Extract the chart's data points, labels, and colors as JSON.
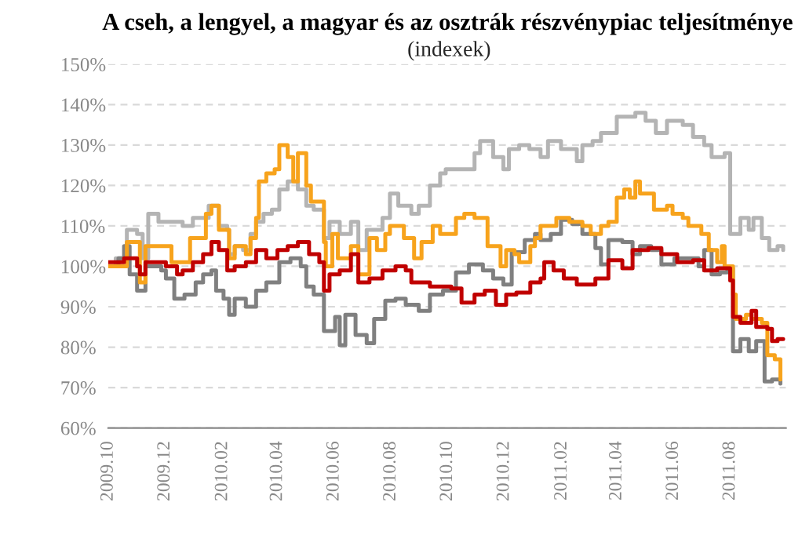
{
  "chart_data": {
    "type": "step",
    "title": "A cseh, a lengyel, a magyar és az osztrák részvénypiac teljesítménye",
    "subtitle": "(indexek)",
    "xlim": [
      "2009-10-01",
      "2011-09-30"
    ],
    "xticks": [
      {
        "value": "2009-10-01",
        "label": "2009.10"
      },
      {
        "value": "2009-12-01",
        "label": "2009.12"
      },
      {
        "value": "2010-02-01",
        "label": "2010.02"
      },
      {
        "value": "2010-04-01",
        "label": "2010.04"
      },
      {
        "value": "2010-06-01",
        "label": "2010.06"
      },
      {
        "value": "2010-08-01",
        "label": "2010.08"
      },
      {
        "value": "2010-10-01",
        "label": "2010.10"
      },
      {
        "value": "2010-12-01",
        "label": "2010.12"
      },
      {
        "value": "2011-02-01",
        "label": "2011.02"
      },
      {
        "value": "2011-04-01",
        "label": "2011.04"
      },
      {
        "value": "2011-06-01",
        "label": "2011.06"
      },
      {
        "value": "2011-08-01",
        "label": "2011.08"
      }
    ],
    "ylim": [
      60,
      150
    ],
    "yticks": [
      {
        "value": 60,
        "label": "60%"
      },
      {
        "value": 70,
        "label": "70%"
      },
      {
        "value": 80,
        "label": "80%"
      },
      {
        "value": 90,
        "label": "90%"
      },
      {
        "value": 100,
        "label": "100%"
      },
      {
        "value": 110,
        "label": "110%"
      },
      {
        "value": 120,
        "label": "120%"
      },
      {
        "value": 130,
        "label": "130%"
      },
      {
        "value": 140,
        "label": "140%"
      },
      {
        "value": 150,
        "label": "150%"
      }
    ],
    "grid": "y",
    "legend": false,
    "series": [
      {
        "color": "#b4b4b4",
        "x": [
          "2009-10-01",
          "2009-10-09",
          "2009-10-21",
          "2009-11-01",
          "2009-11-07",
          "2009-11-13",
          "2009-11-24",
          "2009-12-20",
          "2009-12-31",
          "2010-01-17",
          "2010-01-28",
          "2010-02-06",
          "2010-02-08",
          "2010-02-14",
          "2010-02-23",
          "2010-03-03",
          "2010-03-09",
          "2010-03-17",
          "2010-03-26",
          "2010-04-03",
          "2010-04-12",
          "2010-04-23",
          "2010-05-02",
          "2010-05-10",
          "2010-05-21",
          "2010-05-27",
          "2010-06-07",
          "2010-06-19",
          "2010-06-27",
          "2010-07-06",
          "2010-07-23",
          "2010-07-31",
          "2010-08-09",
          "2010-08-23",
          "2010-08-31",
          "2010-09-12",
          "2010-09-23",
          "2010-09-29",
          "2010-10-10",
          "2010-10-30",
          "2010-11-05",
          "2010-11-19",
          "2010-11-30",
          "2010-12-06",
          "2010-12-17",
          "2010-12-28",
          "2011-01-09",
          "2011-01-17",
          "2011-01-31",
          "2011-02-17",
          "2011-02-23",
          "2011-03-06",
          "2011-03-15",
          "2011-04-01",
          "2011-04-21",
          "2011-05-02",
          "2011-05-13",
          "2011-05-25",
          "2011-06-11",
          "2011-06-22",
          "2011-07-04",
          "2011-07-12",
          "2011-07-26",
          "2011-08-01",
          "2011-08-12",
          "2011-08-21",
          "2011-08-26",
          "2011-09-04",
          "2011-09-12",
          "2011-09-21",
          "2011-09-27"
        ],
        "values": [
          100,
          102,
          109,
          108,
          102,
          113,
          111,
          110,
          112,
          115,
          110,
          109,
          103,
          105,
          104,
          108,
          111,
          113,
          114,
          119,
          121,
          119,
          115,
          114,
          107,
          111,
          108,
          111,
          104,
          109,
          112,
          118,
          115,
          113,
          115,
          120,
          123,
          124,
          124,
          128,
          131,
          127,
          124,
          129,
          130,
          129,
          127,
          131,
          129,
          126,
          130,
          131,
          133,
          137,
          138,
          136,
          133,
          136,
          135,
          132,
          130,
          127,
          128,
          108,
          112,
          109,
          112,
          107,
          104,
          105,
          104
        ]
      },
      {
        "color": "#808080",
        "x": [
          "2009-10-01",
          "2009-10-12",
          "2009-10-18",
          "2009-10-24",
          "2009-11-01",
          "2009-11-10",
          "2009-11-27",
          "2009-12-02",
          "2009-12-11",
          "2009-12-22",
          "2010-01-03",
          "2010-01-11",
          "2010-01-20",
          "2010-01-25",
          "2010-02-02",
          "2010-02-08",
          "2010-02-14",
          "2010-02-26",
          "2010-03-09",
          "2010-03-20",
          "2010-04-03",
          "2010-04-15",
          "2010-04-26",
          "2010-05-02",
          "2010-05-10",
          "2010-05-21",
          "2010-06-02",
          "2010-06-07",
          "2010-06-13",
          "2010-06-24",
          "2010-07-06",
          "2010-07-14",
          "2010-07-26",
          "2010-08-06",
          "2010-08-17",
          "2010-08-31",
          "2010-09-12",
          "2010-09-26",
          "2010-10-10",
          "2010-10-24",
          "2010-11-08",
          "2010-11-19",
          "2010-11-30",
          "2010-12-09",
          "2010-12-23",
          "2011-01-03",
          "2011-01-09",
          "2011-01-20",
          "2011-01-31",
          "2011-02-12",
          "2011-02-23",
          "2011-03-09",
          "2011-03-15",
          "2011-03-23",
          "2011-04-07",
          "2011-04-18",
          "2011-04-26",
          "2011-05-08",
          "2011-05-19",
          "2011-06-02",
          "2011-06-17",
          "2011-06-28",
          "2011-07-04",
          "2011-07-12",
          "2011-07-21",
          "2011-07-29",
          "2011-08-04",
          "2011-08-12",
          "2011-08-21",
          "2011-08-29",
          "2011-09-07",
          "2011-09-15",
          "2011-09-24"
        ],
        "values": [
          100,
          102,
          105,
          98,
          94,
          100,
          99,
          97,
          92,
          93,
          96,
          98,
          99,
          94,
          92,
          88,
          92,
          90,
          94,
          96,
          101,
          102,
          100,
          95,
          93,
          84,
          87.5,
          80.5,
          88,
          83,
          81,
          87,
          91.5,
          92,
          90.5,
          89,
          93,
          94,
          98.5,
          100.5,
          99,
          97,
          95.5,
          103.5,
          106.5,
          108,
          106.5,
          108,
          111.5,
          110.5,
          108,
          104.5,
          100.5,
          106.5,
          106,
          103,
          105,
          104,
          100.5,
          102,
          102,
          100,
          104,
          98,
          98.5,
          99.5,
          79,
          82,
          79,
          81.5,
          71.5,
          72,
          71
        ]
      },
      {
        "color": "#f7a31c",
        "x": [
          "2009-10-01",
          "2009-10-21",
          "2009-11-04",
          "2009-11-10",
          "2009-12-08",
          "2009-12-28",
          "2010-01-14",
          "2010-01-20",
          "2010-01-28",
          "2010-02-08",
          "2010-02-14",
          "2010-02-26",
          "2010-03-03",
          "2010-03-09",
          "2010-03-12",
          "2010-03-20",
          "2010-03-29",
          "2010-04-03",
          "2010-04-12",
          "2010-04-18",
          "2010-04-23",
          "2010-05-02",
          "2010-05-07",
          "2010-05-21",
          "2010-05-23",
          "2010-05-30",
          "2010-06-05",
          "2010-06-19",
          "2010-06-27",
          "2010-07-09",
          "2010-07-17",
          "2010-07-26",
          "2010-07-31",
          "2010-08-15",
          "2010-08-26",
          "2010-09-03",
          "2010-09-15",
          "2010-09-23",
          "2010-10-10",
          "2010-10-19",
          "2010-10-30",
          "2010-11-13",
          "2010-11-27",
          "2010-12-03",
          "2010-12-12",
          "2010-12-17",
          "2010-12-29",
          "2011-01-03",
          "2011-01-09",
          "2011-01-26",
          "2011-02-09",
          "2011-02-23",
          "2011-03-04",
          "2011-03-15",
          "2011-03-23",
          "2011-04-01",
          "2011-04-09",
          "2011-04-15",
          "2011-04-21",
          "2011-04-26",
          "2011-05-11",
          "2011-05-25",
          "2011-05-31",
          "2011-06-11",
          "2011-06-17",
          "2011-07-01",
          "2011-07-09",
          "2011-07-18",
          "2011-07-23",
          "2011-07-26",
          "2011-08-04",
          "2011-08-07",
          "2011-08-18",
          "2011-08-24",
          "2011-09-04",
          "2011-09-10",
          "2011-09-18",
          "2011-09-24"
        ],
        "values": [
          100,
          106,
          96,
          105,
          101,
          107,
          113,
          115,
          109,
          102,
          105,
          103,
          107,
          112,
          121,
          123,
          124,
          130,
          127,
          121,
          128,
          120,
          116,
          106,
          100,
          108,
          102,
          105,
          98,
          107,
          104,
          108,
          110,
          107,
          102,
          106,
          110,
          108,
          112,
          113,
          112,
          105,
          100,
          104,
          103,
          101,
          105,
          107,
          110,
          112,
          111,
          110,
          108,
          110,
          111,
          117,
          119,
          117,
          121,
          118,
          114,
          115,
          113,
          112,
          110,
          108,
          104,
          101,
          105,
          100,
          93,
          87,
          88,
          87,
          86,
          78,
          77,
          72
        ]
      },
      {
        "color": "#c00000",
        "x": [
          "2009-10-01",
          "2009-10-18",
          "2009-11-01",
          "2009-11-04",
          "2009-11-10",
          "2009-12-02",
          "2009-12-14",
          "2009-12-20",
          "2009-12-31",
          "2010-01-11",
          "2010-01-20",
          "2010-01-28",
          "2010-02-06",
          "2010-02-14",
          "2010-02-26",
          "2010-03-09",
          "2010-03-20",
          "2010-04-01",
          "2010-04-12",
          "2010-04-23",
          "2010-05-05",
          "2010-05-16",
          "2010-05-21",
          "2010-05-27",
          "2010-06-07",
          "2010-06-19",
          "2010-06-27",
          "2010-07-09",
          "2010-07-23",
          "2010-08-06",
          "2010-08-17",
          "2010-08-23",
          "2010-09-12",
          "2010-10-05",
          "2010-10-16",
          "2010-10-30",
          "2010-11-10",
          "2010-11-22",
          "2010-12-03",
          "2010-12-14",
          "2010-12-29",
          "2011-01-09",
          "2011-01-13",
          "2011-01-23",
          "2011-02-03",
          "2011-02-17",
          "2011-03-09",
          "2011-03-23",
          "2011-04-07",
          "2011-04-18",
          "2011-05-05",
          "2011-05-19",
          "2011-06-05",
          "2011-06-22",
          "2011-07-04",
          "2011-07-18",
          "2011-08-01",
          "2011-08-04",
          "2011-08-12",
          "2011-08-24",
          "2011-08-29",
          "2011-09-10",
          "2011-09-15",
          "2011-09-21",
          "2011-09-27"
        ],
        "values": [
          101,
          102,
          100,
          98,
          101,
          100,
          98,
          99,
          101,
          103,
          106,
          104,
          99,
          100,
          101,
          104,
          102,
          104,
          105,
          106,
          103,
          101,
          94,
          98,
          99,
          103,
          96,
          97,
          99,
          100,
          99,
          96,
          95,
          94.5,
          91,
          93,
          94,
          90.5,
          93,
          93.5,
          96,
          97,
          101,
          99,
          97,
          95.5,
          97,
          101.5,
          99.5,
          104,
          104.5,
          103,
          101,
          101.5,
          99,
          99.5,
          96.5,
          87.5,
          86,
          89,
          85,
          84.5,
          81.5,
          82,
          82
        ]
      }
    ]
  }
}
